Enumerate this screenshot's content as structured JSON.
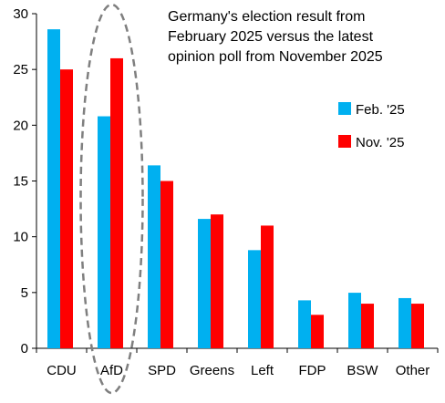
{
  "chart_data": {
    "type": "bar",
    "title": "Germany's election result from February 2025 versus the latest opinion poll from November 2025",
    "title_lines": [
      "Germany's election result from",
      "February 2025 versus the latest",
      "opinion poll from November 2025"
    ],
    "categories": [
      "CDU",
      "AfD",
      "SPD",
      "Greens",
      "Left",
      "FDP",
      "BSW",
      "Other"
    ],
    "series": [
      {
        "name": "Feb. '25",
        "color": "#00B0F0",
        "values": [
          28.6,
          20.8,
          16.4,
          11.6,
          8.8,
          4.3,
          4.98,
          4.5
        ]
      },
      {
        "name": "Nov. '25",
        "color": "#FF0000",
        "values": [
          25.0,
          26.0,
          15.0,
          12.0,
          11.0,
          3.0,
          4.0,
          4.0
        ]
      }
    ],
    "ylim": [
      0,
      30
    ],
    "yticks": [
      0,
      5,
      10,
      15,
      20,
      25,
      30
    ],
    "xlabel": "",
    "ylabel": "",
    "grid": false,
    "legend_position": "right",
    "highlight": {
      "category": "AfD",
      "shape": "dashed-ellipse",
      "color": "#7F7F7F"
    }
  }
}
